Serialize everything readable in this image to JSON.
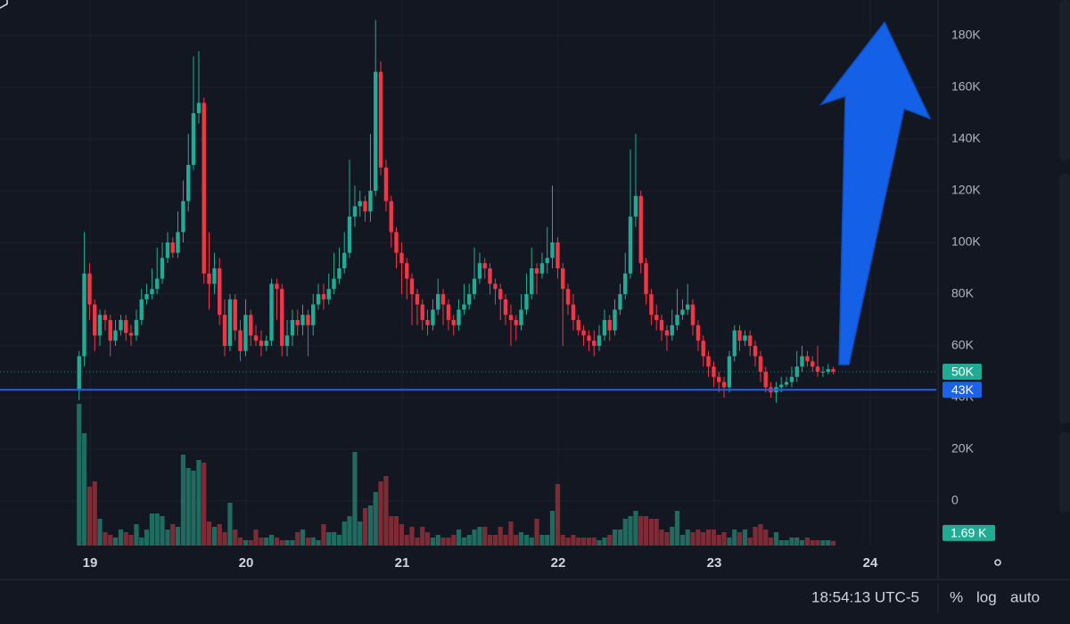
{
  "chart_data": {
    "type": "candlestick",
    "xlim": [
      18.423,
      24.423
    ],
    "xticks": [
      19,
      20,
      21,
      22,
      23,
      24
    ],
    "ylim": [
      -17.24,
      193.79
    ],
    "yticks": [
      {
        "value": 0,
        "label": "0"
      },
      {
        "value": 20,
        "label": "20K"
      },
      {
        "value": 40,
        "label": "40K"
      },
      {
        "value": 60,
        "label": "60K"
      },
      {
        "value": 80,
        "label": "80K"
      },
      {
        "value": 100,
        "label": "100K"
      },
      {
        "value": 120,
        "label": "120K"
      },
      {
        "value": 140,
        "label": "140K"
      },
      {
        "value": 160,
        "label": "160K"
      },
      {
        "value": 180,
        "label": "180K"
      }
    ],
    "volume_ylim": [
      0,
      204
    ],
    "grid": true,
    "up_color": "#22ab94",
    "down_color": "#f23645",
    "up_volume_color": "#1f6b5f",
    "down_volume_color": "#7d2b35",
    "last_price": {
      "value": 50,
      "label": "50K",
      "color": "#22ab94"
    },
    "price_line": {
      "value": 43,
      "label": "43K",
      "color": "#1e62e6"
    },
    "last_volume_label": {
      "value": 1.69,
      "label": "1.69 K",
      "color": "#22ab94"
    },
    "x": [
      18.93,
      18.963,
      18.997,
      19.03,
      19.063,
      19.097,
      19.13,
      19.163,
      19.197,
      19.23,
      19.263,
      19.297,
      19.33,
      19.363,
      19.397,
      19.43,
      19.463,
      19.497,
      19.53,
      19.563,
      19.597,
      19.63,
      19.663,
      19.697,
      19.73,
      19.763,
      19.797,
      19.83,
      19.863,
      19.897,
      19.93,
      19.963,
      19.997,
      20.03,
      20.063,
      20.097,
      20.13,
      20.163,
      20.197,
      20.23,
      20.263,
      20.297,
      20.33,
      20.363,
      20.397,
      20.43,
      20.463,
      20.497,
      20.53,
      20.563,
      20.597,
      20.63,
      20.663,
      20.697,
      20.73,
      20.763,
      20.797,
      20.83,
      20.863,
      20.897,
      20.93,
      20.963,
      20.997,
      21.03,
      21.063,
      21.097,
      21.13,
      21.163,
      21.197,
      21.23,
      21.263,
      21.297,
      21.33,
      21.363,
      21.397,
      21.43,
      21.463,
      21.497,
      21.53,
      21.563,
      21.597,
      21.63,
      21.663,
      21.697,
      21.73,
      21.763,
      21.797,
      21.83,
      21.863,
      21.897,
      21.93,
      21.963,
      21.997,
      22.03,
      22.063,
      22.097,
      22.13,
      22.163,
      22.197,
      22.23,
      22.263,
      22.297,
      22.33,
      22.363,
      22.397,
      22.43,
      22.463,
      22.497,
      22.53,
      22.563,
      22.597,
      22.63,
      22.663,
      22.697,
      22.73,
      22.763,
      22.797,
      22.83,
      22.863,
      22.897,
      22.93,
      22.963,
      22.997,
      23.03,
      23.063,
      23.097,
      23.13,
      23.163,
      23.197,
      23.23,
      23.263,
      23.297,
      23.33,
      23.363,
      23.397,
      23.43,
      23.463,
      23.497,
      23.53,
      23.563,
      23.597,
      23.63,
      23.663,
      23.697,
      23.73,
      23.763
    ],
    "open": [
      43,
      56,
      88,
      76,
      64,
      72,
      70,
      62,
      66,
      70,
      65,
      64,
      70,
      78,
      80,
      82,
      86,
      94,
      100,
      96,
      104,
      116,
      130,
      150,
      154,
      88,
      84,
      90,
      72,
      60,
      78,
      66,
      58,
      72,
      64,
      62,
      60,
      62,
      84,
      82,
      60,
      64,
      70,
      68,
      72,
      68,
      76,
      80,
      78,
      82,
      86,
      90,
      96,
      110,
      114,
      116,
      112,
      120,
      166,
      129,
      116,
      104,
      96,
      92,
      86,
      80,
      76,
      70,
      68,
      74,
      80,
      76,
      70,
      68,
      74,
      76,
      80,
      86,
      92,
      90,
      84,
      82,
      78,
      72,
      70,
      68,
      74,
      80,
      90,
      88,
      92,
      94,
      100,
      90,
      82,
      76,
      70,
      66,
      64,
      62,
      60,
      64,
      70,
      66,
      74,
      80,
      88,
      110,
      118,
      92,
      80,
      72,
      70,
      66,
      64,
      68,
      72,
      74,
      76,
      68,
      62,
      56,
      52,
      48,
      46,
      44,
      56,
      66,
      62,
      64,
      60,
      56,
      50,
      44,
      42,
      44,
      45,
      46,
      48,
      52,
      56,
      54,
      52,
      50,
      50,
      51
    ],
    "high": [
      58,
      104,
      92,
      78,
      74,
      74,
      72,
      70,
      72,
      72,
      68,
      74,
      82,
      84,
      90,
      98,
      100,
      104,
      102,
      112,
      124,
      142,
      172,
      174,
      156,
      104,
      96,
      94,
      78,
      80,
      80,
      70,
      78,
      74,
      68,
      66,
      64,
      86,
      86,
      84,
      70,
      74,
      74,
      76,
      74,
      80,
      84,
      84,
      88,
      96,
      98,
      104,
      132,
      122,
      120,
      118,
      142,
      186,
      170,
      132,
      118,
      106,
      100,
      94,
      88,
      82,
      78,
      74,
      78,
      86,
      82,
      78,
      72,
      78,
      84,
      84,
      98,
      96,
      94,
      92,
      86,
      84,
      80,
      76,
      72,
      80,
      88,
      98,
      92,
      96,
      106,
      122,
      102,
      92,
      84,
      80,
      72,
      68,
      66,
      66,
      68,
      74,
      72,
      78,
      84,
      96,
      136,
      142,
      120,
      94,
      82,
      76,
      72,
      68,
      74,
      82,
      78,
      84,
      78,
      70,
      64,
      58,
      54,
      50,
      48,
      58,
      68,
      68,
      66,
      66,
      62,
      58,
      52,
      46,
      46,
      48,
      48,
      52,
      58,
      60,
      58,
      56,
      60,
      52,
      53,
      52
    ],
    "low": [
      39,
      52,
      70,
      58,
      60,
      66,
      56,
      60,
      64,
      62,
      60,
      62,
      68,
      76,
      78,
      80,
      84,
      92,
      94,
      94,
      100,
      112,
      128,
      146,
      84,
      74,
      80,
      68,
      56,
      58,
      62,
      54,
      56,
      60,
      60,
      56,
      58,
      60,
      70,
      56,
      56,
      60,
      64,
      64,
      56,
      64,
      74,
      74,
      76,
      80,
      84,
      88,
      94,
      106,
      110,
      108,
      108,
      118,
      126,
      112,
      98,
      90,
      80,
      78,
      68,
      68,
      66,
      64,
      66,
      72,
      68,
      66,
      64,
      66,
      72,
      74,
      78,
      84,
      86,
      80,
      76,
      70,
      68,
      60,
      62,
      66,
      72,
      78,
      80,
      86,
      88,
      90,
      86,
      60,
      72,
      66,
      64,
      60,
      58,
      56,
      58,
      62,
      62,
      64,
      72,
      78,
      86,
      106,
      88,
      76,
      68,
      66,
      62,
      58,
      62,
      66,
      70,
      72,
      64,
      58,
      52,
      48,
      44,
      42,
      40,
      42,
      54,
      58,
      60,
      56,
      52,
      46,
      42,
      40,
      38,
      42,
      44,
      44,
      46,
      50,
      52,
      50,
      48,
      48,
      49,
      49
    ],
    "close": [
      56,
      88,
      76,
      64,
      72,
      70,
      62,
      66,
      70,
      65,
      64,
      70,
      78,
      80,
      82,
      86,
      94,
      100,
      96,
      104,
      116,
      130,
      150,
      154,
      88,
      84,
      90,
      72,
      60,
      78,
      66,
      58,
      72,
      64,
      62,
      60,
      62,
      84,
      82,
      60,
      64,
      70,
      68,
      72,
      68,
      76,
      80,
      78,
      82,
      86,
      90,
      96,
      110,
      114,
      116,
      112,
      120,
      166,
      129,
      116,
      104,
      96,
      92,
      86,
      80,
      76,
      70,
      68,
      74,
      80,
      76,
      70,
      68,
      74,
      76,
      80,
      86,
      92,
      90,
      84,
      82,
      78,
      72,
      70,
      68,
      74,
      80,
      90,
      88,
      92,
      94,
      100,
      90,
      82,
      76,
      70,
      66,
      64,
      62,
      60,
      64,
      70,
      66,
      74,
      80,
      88,
      110,
      118,
      92,
      80,
      72,
      70,
      66,
      64,
      68,
      72,
      74,
      76,
      68,
      62,
      56,
      52,
      48,
      46,
      44,
      56,
      66,
      62,
      64,
      60,
      56,
      50,
      44,
      42,
      44,
      45,
      46,
      48,
      52,
      56,
      54,
      52,
      50,
      50,
      51,
      50
    ],
    "volume": [
      53,
      42,
      22,
      24,
      10,
      5,
      4,
      3,
      6,
      5,
      4,
      8,
      3,
      6,
      12,
      12,
      11,
      6,
      8,
      7,
      34,
      29,
      28,
      32,
      31,
      9,
      7,
      8,
      5,
      16,
      6,
      3,
      2,
      2,
      6,
      3,
      3,
      4,
      3,
      2,
      2,
      2,
      5,
      6,
      3,
      3,
      2,
      8,
      5,
      5,
      4,
      9,
      11,
      35,
      9,
      14,
      15,
      20,
      24,
      26,
      11,
      11,
      8,
      4,
      7,
      3,
      7,
      5,
      3,
      4,
      3,
      3,
      4,
      6,
      3,
      4,
      6,
      7,
      7,
      4,
      4,
      7,
      4,
      9,
      4,
      5,
      4,
      3,
      10,
      4,
      4,
      13,
      23,
      4,
      3,
      4,
      3,
      3,
      3,
      3,
      2,
      3,
      4,
      6,
      6,
      10,
      11,
      13,
      11,
      11,
      10,
      10,
      6,
      5,
      7,
      13,
      4,
      6,
      5,
      6,
      5,
      6,
      6,
      4,
      5,
      3,
      6,
      5,
      6,
      3,
      7,
      8,
      6,
      3,
      5,
      2,
      2,
      3,
      3,
      2,
      3,
      2,
      2,
      2,
      2,
      1.69
    ]
  },
  "status_bar": {
    "time": "18:54:13 UTC-5",
    "percent": "%",
    "log": "log",
    "auto": "auto"
  }
}
